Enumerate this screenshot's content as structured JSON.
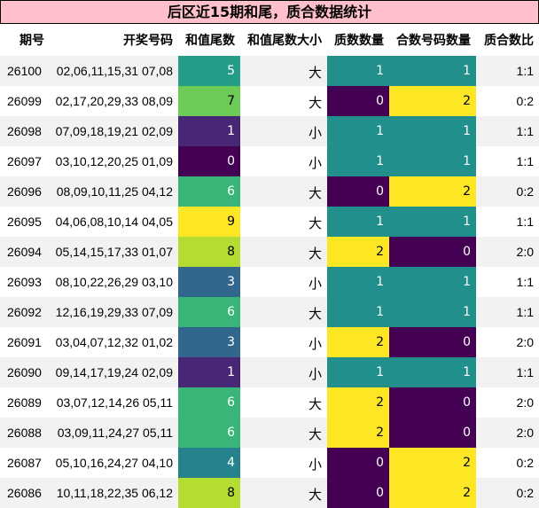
{
  "title": "后区近15期和尾，质合数据统计",
  "chart_data": {
    "type": "table",
    "columns": [
      "期号",
      "开奖号码",
      "和值尾数",
      "和值尾数大小",
      "质数数量",
      "合数号码数量",
      "质合数比"
    ],
    "rows": [
      {
        "period": "26100",
        "numbers": "02,06,11,15,31 07,08",
        "sum_tail": 5,
        "size": "大",
        "prime": 1,
        "composite": 1,
        "ratio": "1:1"
      },
      {
        "period": "26099",
        "numbers": "02,17,20,29,33 08,09",
        "sum_tail": 7,
        "size": "大",
        "prime": 0,
        "composite": 2,
        "ratio": "0:2"
      },
      {
        "period": "26098",
        "numbers": "07,09,18,19,21 02,09",
        "sum_tail": 1,
        "size": "小",
        "prime": 1,
        "composite": 1,
        "ratio": "1:1"
      },
      {
        "period": "26097",
        "numbers": "03,10,12,20,25 01,09",
        "sum_tail": 0,
        "size": "小",
        "prime": 1,
        "composite": 1,
        "ratio": "1:1"
      },
      {
        "period": "26096",
        "numbers": "08,09,10,11,25 04,12",
        "sum_tail": 6,
        "size": "大",
        "prime": 0,
        "composite": 2,
        "ratio": "0:2"
      },
      {
        "period": "26095",
        "numbers": "04,06,08,10,14 04,05",
        "sum_tail": 9,
        "size": "大",
        "prime": 1,
        "composite": 1,
        "ratio": "1:1"
      },
      {
        "period": "26094",
        "numbers": "05,14,15,17,33 01,07",
        "sum_tail": 8,
        "size": "大",
        "prime": 2,
        "composite": 0,
        "ratio": "2:0"
      },
      {
        "period": "26093",
        "numbers": "08,10,22,26,29 03,10",
        "sum_tail": 3,
        "size": "小",
        "prime": 1,
        "composite": 1,
        "ratio": "1:1"
      },
      {
        "period": "26092",
        "numbers": "12,16,19,29,33 07,09",
        "sum_tail": 6,
        "size": "大",
        "prime": 1,
        "composite": 1,
        "ratio": "1:1"
      },
      {
        "period": "26091",
        "numbers": "03,04,07,12,32 01,02",
        "sum_tail": 3,
        "size": "小",
        "prime": 2,
        "composite": 0,
        "ratio": "2:0"
      },
      {
        "period": "26090",
        "numbers": "09,14,17,19,24 02,09",
        "sum_tail": 1,
        "size": "小",
        "prime": 1,
        "composite": 1,
        "ratio": "1:1"
      },
      {
        "period": "26089",
        "numbers": "03,07,12,14,26 05,11",
        "sum_tail": 6,
        "size": "大",
        "prime": 2,
        "composite": 0,
        "ratio": "2:0"
      },
      {
        "period": "26088",
        "numbers": "03,09,11,24,27 05,11",
        "sum_tail": 6,
        "size": "大",
        "prime": 2,
        "composite": 0,
        "ratio": "2:0"
      },
      {
        "period": "26087",
        "numbers": "05,10,16,24,27 04,10",
        "sum_tail": 4,
        "size": "小",
        "prime": 0,
        "composite": 2,
        "ratio": "0:2"
      },
      {
        "period": "26086",
        "numbers": "10,11,18,22,35 06,12",
        "sum_tail": 8,
        "size": "大",
        "prime": 0,
        "composite": 2,
        "ratio": "0:2"
      }
    ],
    "colormap": "viridis",
    "sum_tail_range": [
      0,
      9
    ],
    "count_range": [
      0,
      2
    ]
  },
  "colors": {
    "title_bg": "#ffc0cb",
    "stripe_bg": "#f2f2f2",
    "light_text": "#ffffff",
    "dark_text": "#000000"
  }
}
